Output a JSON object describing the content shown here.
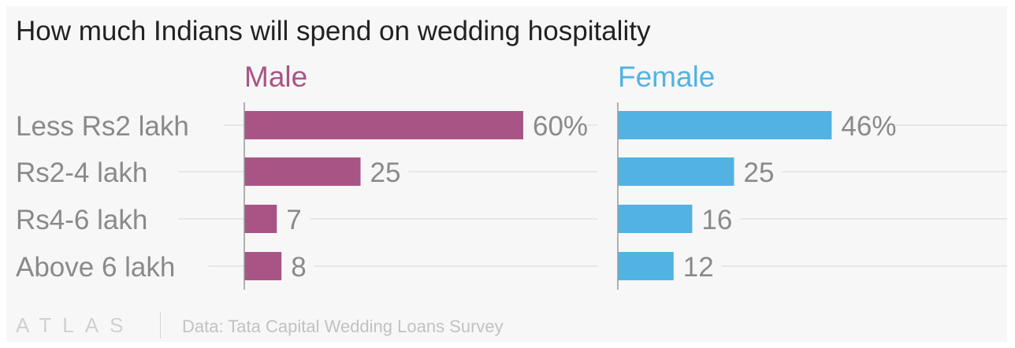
{
  "title": "How much Indians will spend on wedding hospitality",
  "footer": {
    "brand": "ATLAS",
    "source": "Data: Tata Capital Wedding Loans Survey"
  },
  "chart_data": {
    "type": "bar",
    "orientation": "horizontal",
    "title": "How much Indians will spend on wedding hospitality",
    "categories": [
      "Less Rs2 lakh",
      "Rs2-4 lakh",
      "Rs4-6 lakh",
      "Above 6 lakh"
    ],
    "unit": "%",
    "grid": true,
    "series": [
      {
        "name": "Male",
        "color": "#a85586",
        "values": [
          60,
          25,
          7,
          8
        ],
        "labels": [
          "60%",
          "25",
          "7",
          "8"
        ]
      },
      {
        "name": "Female",
        "color": "#52b3e3",
        "values": [
          46,
          25,
          16,
          12
        ],
        "labels": [
          "46%",
          "25",
          "16",
          "12"
        ]
      }
    ]
  },
  "colors": {
    "background": "#f7f7f7",
    "title": "#222222",
    "category_label": "#8a8a8a",
    "value_label": "#8a8a8a",
    "gridline": "#e6e6e6",
    "axis": "#999999"
  }
}
